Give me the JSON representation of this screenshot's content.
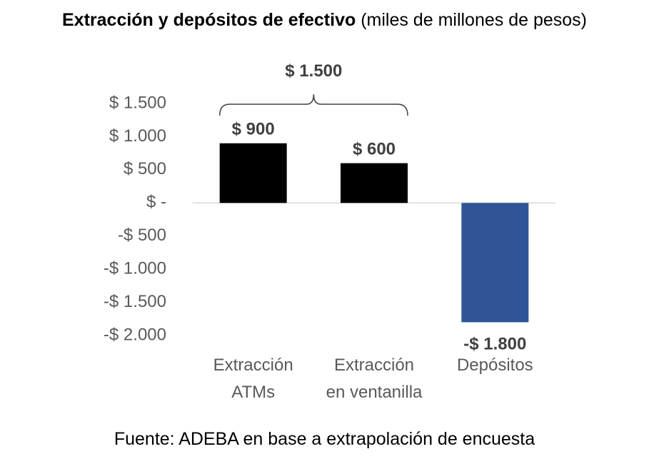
{
  "title": {
    "bold": "Extracción y depósitos de efectivo",
    "rest": "(miles de millones de pesos)"
  },
  "source": "Fuente: ADEBA en base a extrapolación de encuesta",
  "chart_data": {
    "type": "bar",
    "categories": [
      [
        "Extracción",
        "ATMs"
      ],
      [
        "Extracción",
        "en ventanilla"
      ],
      [
        "Depósitos"
      ]
    ],
    "values": [
      900,
      600,
      -1800
    ],
    "data_labels": [
      "$ 900",
      "$ 600",
      "-$ 1.800"
    ],
    "bar_colors": [
      "#000000",
      "#000000",
      "#2F5597"
    ],
    "ylim": [
      -2000,
      1500
    ],
    "yticks": [
      1500,
      1000,
      500,
      0,
      -500,
      -1000,
      -1500,
      -2000
    ],
    "ytick_labels": [
      "$ 1.500",
      "$ 1.000",
      "$ 500",
      "$ -",
      "-$ 500",
      "-$ 1.000",
      "-$ 1.500",
      "-$ 2.000"
    ],
    "annotation": {
      "label": "$ 1.500",
      "spans_categories": [
        0,
        1
      ]
    },
    "grid": false,
    "legend": "none"
  }
}
